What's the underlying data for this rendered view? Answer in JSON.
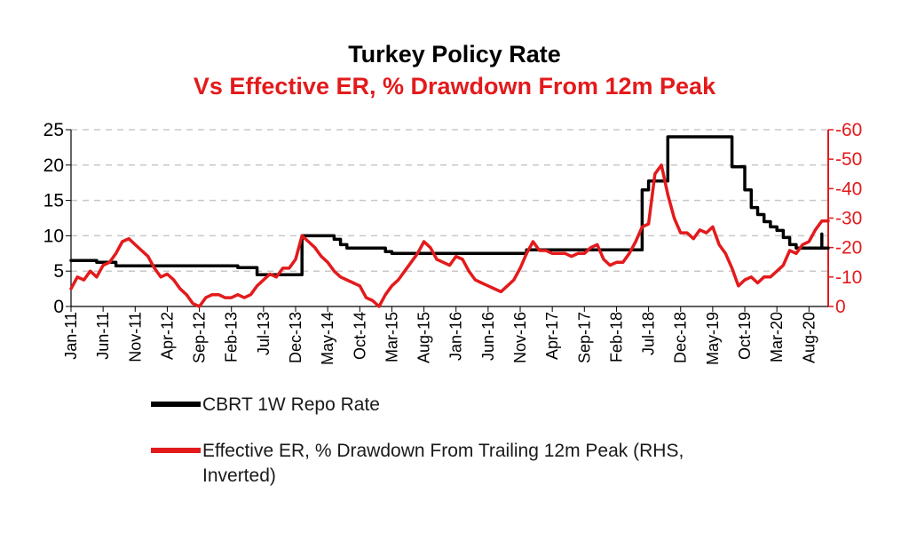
{
  "chart_data": {
    "type": "line",
    "title": "Turkey Policy Rate",
    "subtitle": "Vs Effective ER, % Drawdown From 12m Peak",
    "x_tick_labels": [
      "Jan-11",
      "Jun-11",
      "Nov-11",
      "Apr-12",
      "Sep-12",
      "Feb-13",
      "Jul-13",
      "Dec-13",
      "May-14",
      "Oct-14",
      "Mar-15",
      "Aug-15",
      "Jan-16",
      "Jun-16",
      "Nov-16",
      "Apr-17",
      "Sep-17",
      "Feb-18",
      "Jul-18",
      "Dec-18",
      "May-19",
      "Oct-19",
      "Mar-20",
      "Aug-20"
    ],
    "x_range": [
      "2011-01",
      "2020-11"
    ],
    "y_left": {
      "min": 0,
      "max": 25,
      "ticks": [
        0,
        5,
        10,
        15,
        20,
        25
      ]
    },
    "y_right": {
      "min": 0,
      "max": -60,
      "inverted": true,
      "ticks": [
        0,
        -10,
        -20,
        -30,
        -40,
        -50,
        -60
      ]
    },
    "grid": "horizontal dashed",
    "legend_placement": "bottom",
    "series": [
      {
        "name": "CBRT 1W Repo Rate",
        "axis": "left",
        "color": "#000000",
        "step": true,
        "points": [
          [
            "2011-01",
            6.5
          ],
          [
            "2011-05",
            6.25
          ],
          [
            "2011-08",
            5.75
          ],
          [
            "2012-12",
            5.75
          ],
          [
            "2013-03",
            5.5
          ],
          [
            "2013-06",
            4.5
          ],
          [
            "2014-01",
            4.5
          ],
          [
            "2014-01",
            10.0
          ],
          [
            "2014-06",
            9.5
          ],
          [
            "2014-07",
            8.75
          ],
          [
            "2014-08",
            8.25
          ],
          [
            "2015-01",
            8.25
          ],
          [
            "2015-02",
            7.75
          ],
          [
            "2015-03",
            7.5
          ],
          [
            "2016-11",
            7.5
          ],
          [
            "2016-12",
            8.0
          ],
          [
            "2018-05",
            8.0
          ],
          [
            "2018-06",
            16.5
          ],
          [
            "2018-07",
            17.75
          ],
          [
            "2018-09",
            17.75
          ],
          [
            "2018-10",
            24.0
          ],
          [
            "2019-07",
            24.0
          ],
          [
            "2019-08",
            19.75
          ],
          [
            "2019-09",
            19.75
          ],
          [
            "2019-10",
            16.5
          ],
          [
            "2019-11",
            14.0
          ],
          [
            "2019-12",
            13.0
          ],
          [
            "2020-01",
            12.0
          ],
          [
            "2020-02",
            11.25
          ],
          [
            "2020-03",
            10.75
          ],
          [
            "2020-04",
            9.75
          ],
          [
            "2020-05",
            8.75
          ],
          [
            "2020-06",
            8.25
          ],
          [
            "2020-09",
            8.25
          ],
          [
            "2020-10",
            10.25
          ],
          [
            "2020-10",
            8.25
          ],
          [
            "2020-11",
            8.25
          ]
        ]
      },
      {
        "name": "Effective ER, % Drawdown From Trailing 12m Peak (RHS, Inverted)",
        "axis": "right",
        "color": "#e31a1c",
        "step": false,
        "points": [
          [
            "2011-01",
            -6
          ],
          [
            "2011-02",
            -10
          ],
          [
            "2011-03",
            -9
          ],
          [
            "2011-04",
            -12
          ],
          [
            "2011-05",
            -10
          ],
          [
            "2011-06",
            -14
          ],
          [
            "2011-07",
            -15
          ],
          [
            "2011-08",
            -18
          ],
          [
            "2011-09",
            -22
          ],
          [
            "2011-10",
            -23
          ],
          [
            "2011-11",
            -21
          ],
          [
            "2011-12",
            -19
          ],
          [
            "2012-01",
            -17
          ],
          [
            "2012-02",
            -13
          ],
          [
            "2012-03",
            -10
          ],
          [
            "2012-04",
            -11
          ],
          [
            "2012-05",
            -9
          ],
          [
            "2012-06",
            -6
          ],
          [
            "2012-07",
            -4
          ],
          [
            "2012-08",
            -1
          ],
          [
            "2012-09",
            0
          ],
          [
            "2012-10",
            -3
          ],
          [
            "2012-11",
            -4
          ],
          [
            "2012-12",
            -4
          ],
          [
            "2013-01",
            -3
          ],
          [
            "2013-02",
            -3
          ],
          [
            "2013-03",
            -4
          ],
          [
            "2013-04",
            -3
          ],
          [
            "2013-05",
            -4
          ],
          [
            "2013-06",
            -7
          ],
          [
            "2013-07",
            -9
          ],
          [
            "2013-08",
            -11
          ],
          [
            "2013-09",
            -10
          ],
          [
            "2013-10",
            -13
          ],
          [
            "2013-11",
            -13
          ],
          [
            "2013-12",
            -16
          ],
          [
            "2014-01",
            -24
          ],
          [
            "2014-02",
            -22
          ],
          [
            "2014-03",
            -20
          ],
          [
            "2014-04",
            -17
          ],
          [
            "2014-05",
            -15
          ],
          [
            "2014-06",
            -12
          ],
          [
            "2014-07",
            -10
          ],
          [
            "2014-08",
            -9
          ],
          [
            "2014-09",
            -8
          ],
          [
            "2014-10",
            -7
          ],
          [
            "2014-11",
            -3
          ],
          [
            "2014-12",
            -2
          ],
          [
            "2015-01",
            0
          ],
          [
            "2015-02",
            -4
          ],
          [
            "2015-03",
            -7
          ],
          [
            "2015-04",
            -9
          ],
          [
            "2015-05",
            -12
          ],
          [
            "2015-06",
            -15
          ],
          [
            "2015-07",
            -18
          ],
          [
            "2015-08",
            -22
          ],
          [
            "2015-09",
            -20
          ],
          [
            "2015-10",
            -16
          ],
          [
            "2015-11",
            -15
          ],
          [
            "2015-12",
            -14
          ],
          [
            "2016-01",
            -17
          ],
          [
            "2016-02",
            -16
          ],
          [
            "2016-03",
            -12
          ],
          [
            "2016-04",
            -9
          ],
          [
            "2016-05",
            -8
          ],
          [
            "2016-06",
            -7
          ],
          [
            "2016-07",
            -6
          ],
          [
            "2016-08",
            -5
          ],
          [
            "2016-09",
            -7
          ],
          [
            "2016-10",
            -9
          ],
          [
            "2016-11",
            -13
          ],
          [
            "2016-12",
            -18
          ],
          [
            "2017-01",
            -22
          ],
          [
            "2017-02",
            -19
          ],
          [
            "2017-03",
            -19
          ],
          [
            "2017-04",
            -18
          ],
          [
            "2017-05",
            -18
          ],
          [
            "2017-06",
            -18
          ],
          [
            "2017-07",
            -17
          ],
          [
            "2017-08",
            -18
          ],
          [
            "2017-09",
            -18
          ],
          [
            "2017-10",
            -20
          ],
          [
            "2017-11",
            -21
          ],
          [
            "2017-12",
            -16
          ],
          [
            "2018-01",
            -14
          ],
          [
            "2018-02",
            -15
          ],
          [
            "2018-03",
            -15
          ],
          [
            "2018-04",
            -18
          ],
          [
            "2018-05",
            -22
          ],
          [
            "2018-06",
            -27
          ],
          [
            "2018-07",
            -28
          ],
          [
            "2018-08",
            -45
          ],
          [
            "2018-09",
            -48
          ],
          [
            "2018-10",
            -38
          ],
          [
            "2018-11",
            -30
          ],
          [
            "2018-12",
            -25
          ],
          [
            "2019-01",
            -25
          ],
          [
            "2019-02",
            -23
          ],
          [
            "2019-03",
            -26
          ],
          [
            "2019-04",
            -25
          ],
          [
            "2019-05",
            -27
          ],
          [
            "2019-06",
            -21
          ],
          [
            "2019-07",
            -18
          ],
          [
            "2019-08",
            -13
          ],
          [
            "2019-09",
            -7
          ],
          [
            "2019-10",
            -9
          ],
          [
            "2019-11",
            -10
          ],
          [
            "2019-12",
            -8
          ],
          [
            "2020-01",
            -10
          ],
          [
            "2020-02",
            -10
          ],
          [
            "2020-03",
            -12
          ],
          [
            "2020-04",
            -14
          ],
          [
            "2020-05",
            -19
          ],
          [
            "2020-06",
            -18
          ],
          [
            "2020-07",
            -21
          ],
          [
            "2020-08",
            -22
          ],
          [
            "2020-09",
            -26
          ],
          [
            "2020-10",
            -29
          ],
          [
            "2020-11",
            -29
          ]
        ]
      }
    ]
  }
}
